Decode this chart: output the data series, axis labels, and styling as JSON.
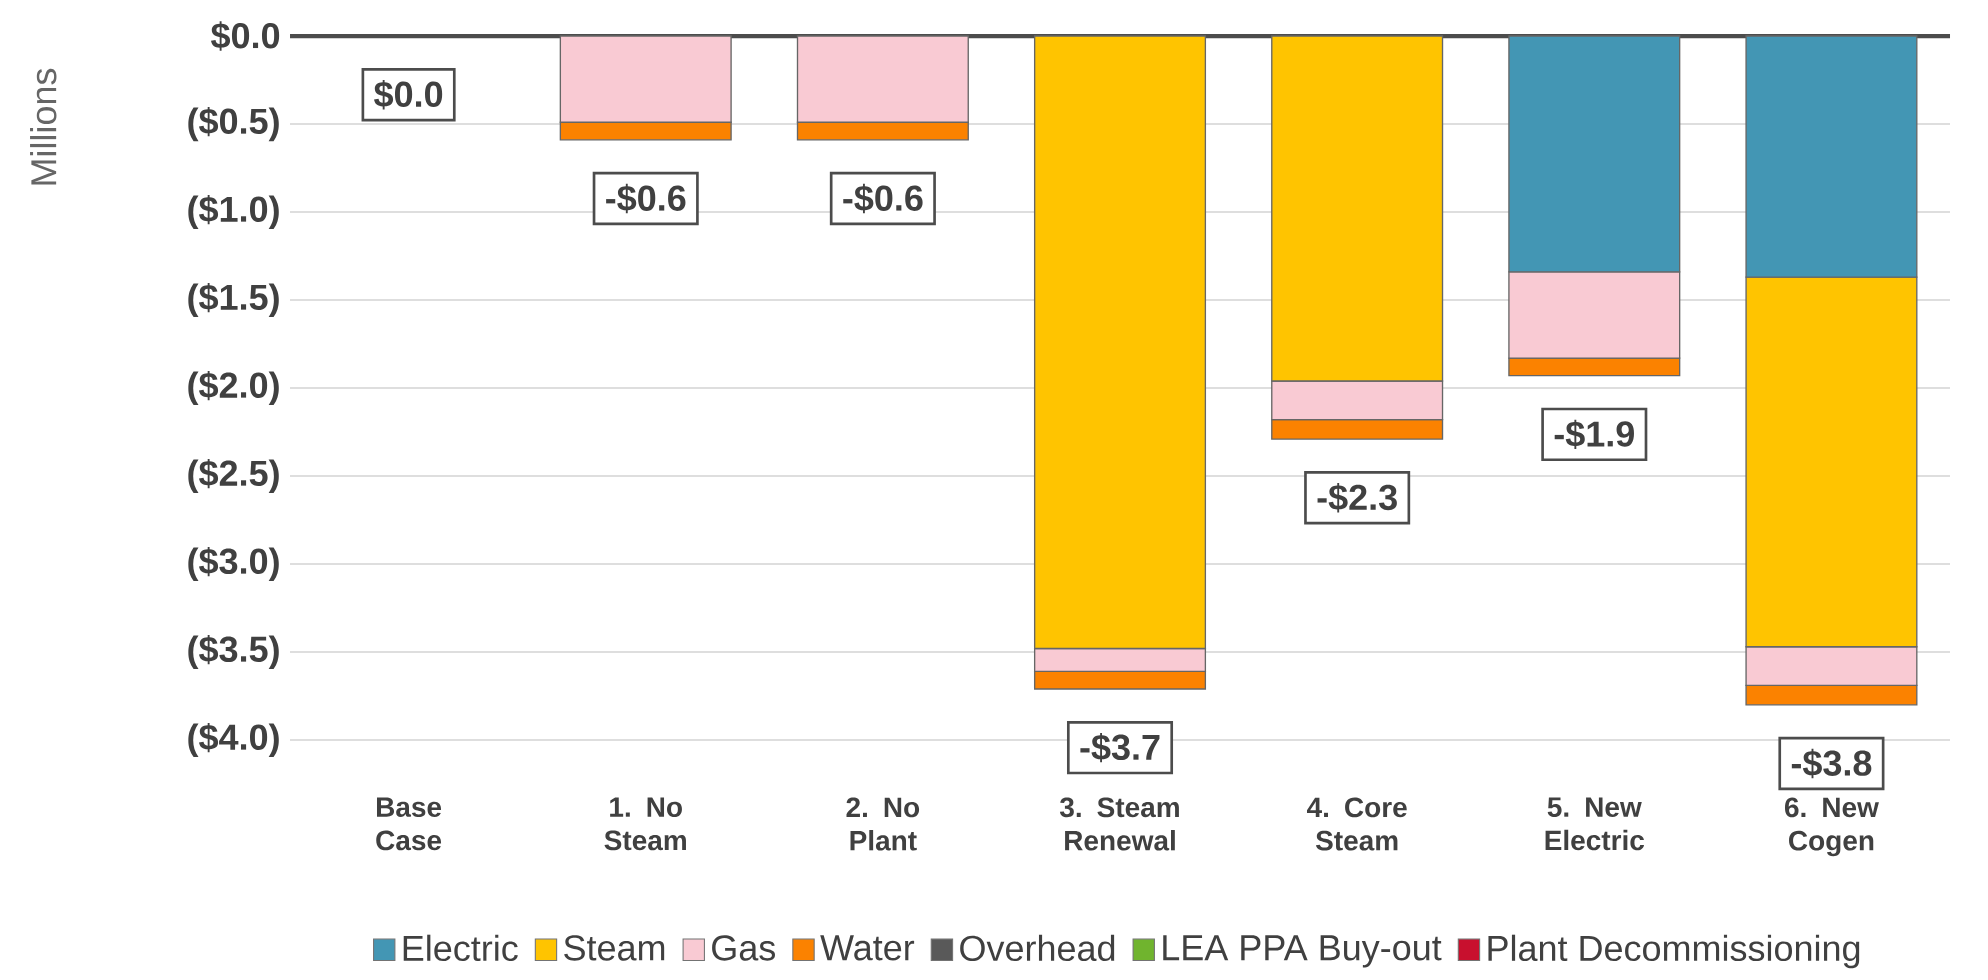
{
  "chart_data": {
    "type": "bar",
    "stacked": true,
    "ylabel": "Millions",
    "categories": [
      "Base Case",
      "1. No Steam",
      "2. No Plant",
      "3. Steam Renewal",
      "4. Core Steam",
      "5. New Electric",
      "6. New Cogen"
    ],
    "series": [
      {
        "name": "Electric",
        "color": "#4396b4",
        "values": [
          0,
          0,
          0,
          0,
          0,
          -1.34,
          -1.37
        ]
      },
      {
        "name": "Steam",
        "color": "#ffc400",
        "values": [
          0,
          0,
          0,
          -3.48,
          -1.96,
          0,
          -2.1
        ]
      },
      {
        "name": "Gas",
        "color": "#f9cad3",
        "values": [
          0,
          -0.49,
          -0.49,
          -0.13,
          -0.22,
          -0.49,
          -0.22
        ]
      },
      {
        "name": "Water",
        "color": "#fb8200",
        "values": [
          0,
          -0.1,
          -0.1,
          -0.1,
          -0.11,
          -0.1,
          -0.11
        ]
      },
      {
        "name": "Overhead",
        "color": "#595959",
        "values": [
          null,
          null,
          null,
          null,
          null,
          null,
          null
        ]
      },
      {
        "name": "LEA PPA Buy-out",
        "color": "#70b42e",
        "values": [
          null,
          null,
          null,
          null,
          null,
          null,
          null
        ]
      },
      {
        "name": "Plant Decommissioning",
        "color": "#c8102e",
        "values": [
          null,
          null,
          null,
          null,
          null,
          null,
          null
        ]
      }
    ],
    "totals": [
      "$0.0",
      "-$0.6",
      "-$0.6",
      "-$3.7",
      "-$2.3",
      "-$1.9",
      "-$3.8"
    ],
    "ylim": [
      -4.0,
      0.0
    ],
    "yticks": [
      {
        "value": 0.0,
        "label": "$0.0"
      },
      {
        "value": -0.5,
        "label": "($0.5)"
      },
      {
        "value": -1.0,
        "label": "($1.0)"
      },
      {
        "value": -1.5,
        "label": "($1.5)"
      },
      {
        "value": -2.0,
        "label": "($2.0)"
      },
      {
        "value": -2.5,
        "label": "($2.5)"
      },
      {
        "value": -3.0,
        "label": "($3.0)"
      },
      {
        "value": -3.5,
        "label": "($3.5)"
      },
      {
        "value": -4.0,
        "label": "($4.0)"
      }
    ],
    "grid": "y",
    "legend": "bottom"
  }
}
